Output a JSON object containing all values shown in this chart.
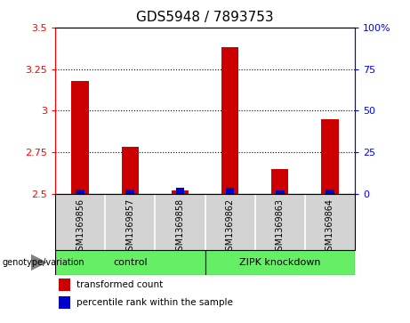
{
  "title": "GDS5948 / 7893753",
  "samples": [
    "GSM1369856",
    "GSM1369857",
    "GSM1369858",
    "GSM1369862",
    "GSM1369863",
    "GSM1369864"
  ],
  "red_values": [
    3.18,
    2.78,
    2.52,
    3.38,
    2.65,
    2.95
  ],
  "blue_values": [
    2,
    2,
    3,
    3,
    1,
    2
  ],
  "ylim_left": [
    2.5,
    3.5
  ],
  "ylim_right": [
    0,
    100
  ],
  "yticks_left": [
    2.5,
    2.75,
    3.0,
    3.25,
    3.5
  ],
  "ytick_labels_left": [
    "2.5",
    "2.75",
    "3",
    "3.25",
    "3.5"
  ],
  "yticks_right": [
    0,
    25,
    50,
    75,
    100
  ],
  "ytick_labels_right": [
    "0",
    "25",
    "50",
    "75",
    "100%"
  ],
  "grid_lines": [
    2.75,
    3.0,
    3.25
  ],
  "groups": [
    {
      "label": "control",
      "start": 0,
      "end": 3
    },
    {
      "label": "ZIPK knockdown",
      "start": 3,
      "end": 6
    }
  ],
  "group_label_prefix": "genotype/variation",
  "legend_red": "transformed count",
  "legend_blue": "percentile rank within the sample",
  "bar_width": 0.35,
  "bar_color_red": "#CC0000",
  "bar_color_blue": "#0000CC",
  "baseline": 2.5,
  "cell_bg": "#d3d3d3",
  "group_color": "#66ee66",
  "title_fontsize": 11,
  "tick_fontsize": 8,
  "label_fontsize": 7,
  "group_fontsize": 8
}
